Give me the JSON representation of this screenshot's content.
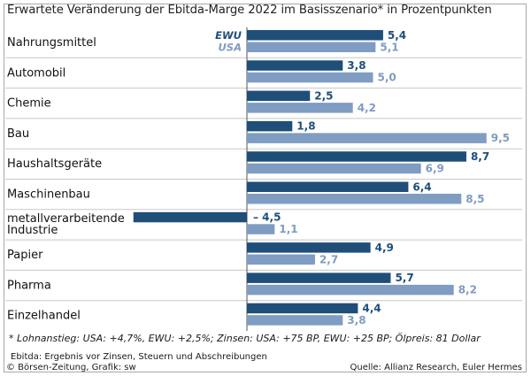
{
  "colors": {
    "ewu": "#1f4e79",
    "usa": "#7f9cc2",
    "separator": "#c8c8c8",
    "axis": "#555555"
  },
  "chart_data": {
    "type": "bar",
    "orientation": "horizontal",
    "title": "Erwartete Veränderung der Ebitda-Marge 2022 im Basisszenario* in Prozentpunkten",
    "legend": [
      "EWU",
      "USA"
    ],
    "xlim": [
      -4.5,
      9.5
    ],
    "categories": [
      [
        "Nahrungsmittel"
      ],
      [
        "Automobil"
      ],
      [
        "Chemie"
      ],
      [
        "Bau"
      ],
      [
        "Haushaltsgeräte"
      ],
      [
        "Maschinenbau"
      ],
      [
        "metallverarbeitende",
        "Industrie"
      ],
      [
        "Papier"
      ],
      [
        "Pharma"
      ],
      [
        "Einzelhandel"
      ]
    ],
    "series": [
      {
        "name": "EWU",
        "values": [
          5.4,
          3.8,
          2.5,
          1.8,
          8.7,
          6.4,
          -4.5,
          4.9,
          5.7,
          4.4
        ],
        "labels": [
          "5,4",
          "3,8",
          "2,5",
          "1,8",
          "8,7",
          "6,4",
          "– 4,5",
          "4,9",
          "5,7",
          "4,4"
        ]
      },
      {
        "name": "USA",
        "values": [
          5.1,
          5.0,
          4.2,
          9.5,
          6.9,
          8.5,
          1.1,
          2.7,
          8.2,
          3.8
        ],
        "labels": [
          "5,1",
          "5,0",
          "4,2",
          "9,5",
          "6,9",
          "8,5",
          "1,1",
          "2,7",
          "8,2",
          "3,8"
        ]
      }
    ]
  },
  "footnote": "* Lohnanstieg: USA: +4,7%, EWU: +2,5%; Zinsen: USA: +75 BP, EWU: +25 BP; Ölpreis: 81 Dollar",
  "ebitda_note": "Ebitda: Ergebnis vor Zinsen, Steuern und Abschreibungen",
  "copyright": "© Börsen-Zeitung, Grafik: sw",
  "source": "Quelle: Allianz Research, Euler Hermes"
}
